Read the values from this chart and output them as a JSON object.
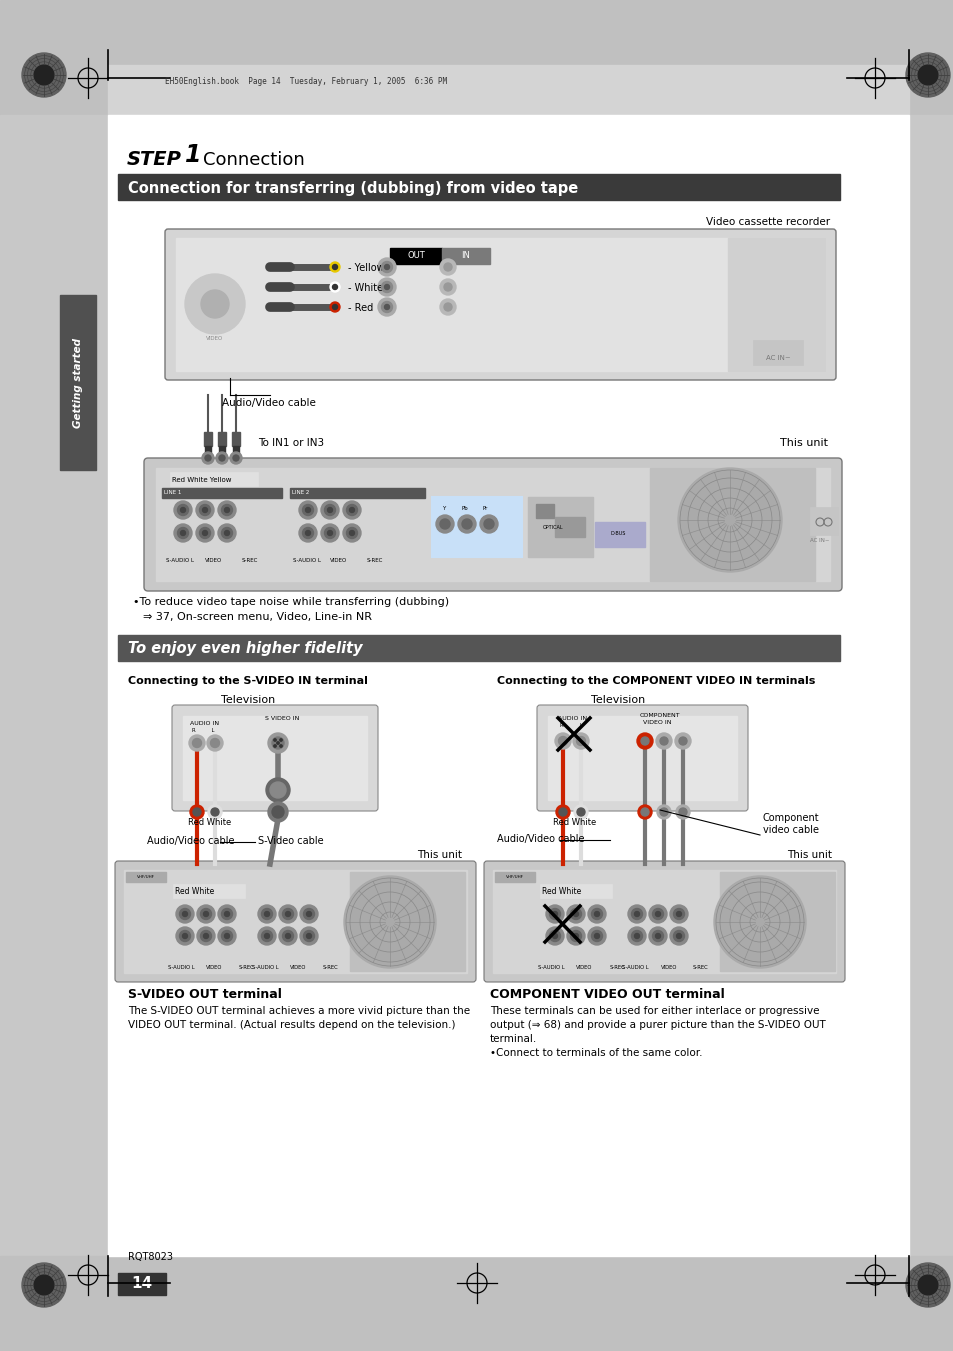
{
  "page_bg": "#ffffff",
  "header_text": "EH50English.book  Page 14  Tuesday, February 1, 2005  6:36 PM",
  "section1_title": "Connection for transferring (dubbing) from video tape",
  "section1_bg": "#3a3a3a",
  "section2_title": "To enjoy even higher fidelity",
  "section2_bg": "#555555",
  "vcr_label": "Video cassette recorder",
  "cable_label": "Audio/Video cable",
  "in1_label": "To IN1 or IN3",
  "this_unit_label": "This unit",
  "bullet_text1": "•To reduce video tape noise while transferring (dubbing)",
  "bullet_text2": "⇒ 37, On-screen menu, Video, Line-in NR",
  "left_box_title": "Connecting to the S-VIDEO IN terminal",
  "right_box_title": "Connecting to the COMPONENT VIDEO IN terminals",
  "left_tv_label": "Television",
  "right_tv_label": "Television",
  "left_audio_label": "Audio/Video cable",
  "left_svideo_label": "S-Video cable",
  "left_this_unit": "This unit",
  "right_audio_label": "Audio/Video cable",
  "right_comp_label": "Component\nvideo cable",
  "right_this_unit": "This unit",
  "svideo_terminal_title": "S-VIDEO OUT terminal",
  "svideo_terminal_desc1": "The S-VIDEO OUT terminal achieves a more vivid picture than the",
  "svideo_terminal_desc2": "VIDEO OUT terminal. (Actual results depend on the television.)",
  "comp_terminal_title": "COMPONENT VIDEO OUT terminal",
  "comp_terminal_desc1": "These terminals can be used for either interlace or progressive",
  "comp_terminal_desc2": "output (⇒ 68) and provide a purer picture than the S-VIDEO OUT",
  "comp_terminal_desc3": "terminal.",
  "comp_terminal_desc4": "•Connect to terminals of the same color.",
  "page_num": "14",
  "rgt_code": "RQT8023",
  "sidebar_text": "Getting started"
}
